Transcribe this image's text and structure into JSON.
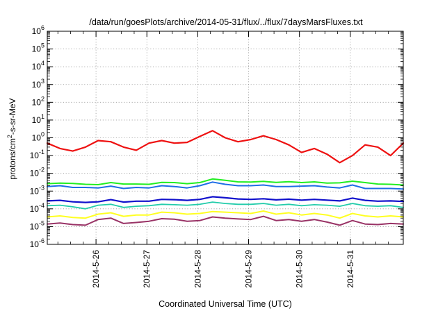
{
  "chart_data": {
    "type": "line",
    "title": "/data/run/goesPlots/archive/2014-05-31/flux/../flux/7daysMarsFluxes.txt",
    "xlabel": "Coordinated Universal Time (UTC)",
    "ylabel": {
      "pre": "protons/cm",
      "sup": "2",
      "post": "-s-sr-MeV"
    },
    "log_y": true,
    "grid": true,
    "x_range": [
      "2014-05-25T01:00",
      "2014-06-01T01:00"
    ],
    "ylim": [
      1e-06,
      1000000.0
    ],
    "x_ticks": [
      "2014-5-26",
      "2014-5-27",
      "2014-5-28",
      "2014-5-29",
      "2014-5-30",
      "2014-5-31"
    ],
    "y_ticks": [
      {
        "value": 1e-06,
        "base": "10",
        "exp": "-6"
      },
      {
        "value": 1e-05,
        "base": "10",
        "exp": "-5"
      },
      {
        "value": 0.0001,
        "base": "10",
        "exp": "-4"
      },
      {
        "value": 0.001,
        "base": "10",
        "exp": "-3"
      },
      {
        "value": 0.01,
        "base": "10",
        "exp": "-2"
      },
      {
        "value": 0.1,
        "base": "10",
        "exp": "-1"
      },
      {
        "value": 1.0,
        "base": "10",
        "exp": "0"
      },
      {
        "value": 10.0,
        "base": "10",
        "exp": "1"
      },
      {
        "value": 100.0,
        "base": "10",
        "exp": "2"
      },
      {
        "value": 1000.0,
        "base": "10",
        "exp": "3"
      },
      {
        "value": 10000.0,
        "base": "10",
        "exp": "4"
      },
      {
        "value": 100000.0,
        "base": "10",
        "exp": "5"
      },
      {
        "value": 1000000.0,
        "base": "10",
        "exp": "6"
      }
    ],
    "x": [
      "2014-05-25T01:00",
      "2014-05-25T07:00",
      "2014-05-25T13:00",
      "2014-05-25T19:00",
      "2014-05-26T01:00",
      "2014-05-26T07:00",
      "2014-05-26T13:00",
      "2014-05-26T19:00",
      "2014-05-27T01:00",
      "2014-05-27T07:00",
      "2014-05-27T13:00",
      "2014-05-27T19:00",
      "2014-05-28T01:00",
      "2014-05-28T07:00",
      "2014-05-28T13:00",
      "2014-05-28T19:00",
      "2014-05-29T01:00",
      "2014-05-29T07:00",
      "2014-05-29T13:00",
      "2014-05-29T19:00",
      "2014-05-30T01:00",
      "2014-05-30T07:00",
      "2014-05-30T13:00",
      "2014-05-30T19:00",
      "2014-05-31T01:00",
      "2014-05-31T07:00",
      "2014-05-31T13:00",
      "2014-05-31T19:00",
      "2014-06-01T01:00"
    ],
    "series": [
      {
        "color": "#ee1111",
        "width": 2.2,
        "values": [
          0.5,
          0.25,
          0.18,
          0.3,
          0.7,
          0.6,
          0.3,
          0.2,
          0.5,
          0.7,
          0.5,
          0.55,
          1.2,
          2.5,
          1.0,
          0.6,
          0.8,
          1.3,
          0.8,
          0.4,
          0.15,
          0.25,
          0.12,
          0.04,
          0.1,
          0.4,
          0.3,
          0.1,
          0.5
        ]
      },
      {
        "color": "#22ee22",
        "width": 2.0,
        "values": [
          0.0026,
          0.0028,
          0.0027,
          0.0024,
          0.0023,
          0.003,
          0.0025,
          0.0025,
          0.0024,
          0.0031,
          0.003,
          0.0026,
          0.003,
          0.0048,
          0.004,
          0.0033,
          0.0032,
          0.0035,
          0.0031,
          0.0034,
          0.003,
          0.0033,
          0.0028,
          0.0029,
          0.0036,
          0.003,
          0.0025,
          0.0024,
          0.0022
        ]
      },
      {
        "color": "#1e6ee6",
        "width": 2.0,
        "values": [
          0.0018,
          0.002,
          0.0016,
          0.0016,
          0.0015,
          0.0019,
          0.0014,
          0.0016,
          0.0015,
          0.002,
          0.0018,
          0.0015,
          0.002,
          0.0032,
          0.0024,
          0.002,
          0.002,
          0.0022,
          0.0018,
          0.0018,
          0.0019,
          0.002,
          0.0017,
          0.0015,
          0.0022,
          0.0014,
          0.0014,
          0.0014,
          0.0013
        ]
      },
      {
        "color": "#1111cc",
        "width": 2.2,
        "values": [
          0.00028,
          0.0003,
          0.00025,
          0.00023,
          0.00025,
          0.00033,
          0.00024,
          0.00027,
          0.00027,
          0.00034,
          0.00033,
          0.0003,
          0.00034,
          0.00048,
          0.00042,
          0.00036,
          0.00034,
          0.00037,
          0.00032,
          0.00035,
          0.00031,
          0.00034,
          0.00031,
          0.00028,
          0.0004,
          0.0003,
          0.00027,
          0.00028,
          0.00026
        ]
      },
      {
        "color": "#22ccaa",
        "width": 1.8,
        "values": [
          0.00015,
          0.00016,
          0.00013,
          0.0001,
          0.00016,
          0.00018,
          0.00012,
          0.00014,
          0.00015,
          0.00018,
          0.00017,
          0.00016,
          0.00018,
          0.00024,
          0.0002,
          0.00018,
          0.00018,
          0.0002,
          0.00016,
          0.00018,
          0.00015,
          0.00017,
          0.00016,
          0.00014,
          0.0002,
          0.00015,
          0.00014,
          0.00015,
          0.00012
        ]
      },
      {
        "color": "#ffff22",
        "width": 2.0,
        "values": [
          3.5e-05,
          4e-05,
          3.3e-05,
          3e-05,
          5e-05,
          6e-05,
          3.8e-05,
          4.5e-05,
          4.5e-05,
          6.5e-05,
          6e-05,
          5e-05,
          5.5e-05,
          7e-05,
          6.5e-05,
          6e-05,
          5.5e-05,
          7.5e-05,
          5e-05,
          6e-05,
          4.5e-05,
          5.5e-05,
          4.5e-05,
          3e-05,
          5.5e-05,
          4e-05,
          3.5e-05,
          4e-05,
          3.5e-05
        ]
      },
      {
        "color": "#993366",
        "width": 2.0,
        "values": [
          1.4e-05,
          1.6e-05,
          1.3e-05,
          1.2e-05,
          2.5e-05,
          3e-05,
          1.5e-05,
          1.7e-05,
          2e-05,
          2.8e-05,
          2.6e-05,
          2e-05,
          2.2e-05,
          3.5e-05,
          3e-05,
          2.7e-05,
          2.5e-05,
          3.8e-05,
          2.2e-05,
          2.5e-05,
          2e-05,
          2.5e-05,
          1.8e-05,
          1.2e-05,
          2.2e-05,
          1.4e-05,
          1.3e-05,
          1.5e-05,
          1.4e-05
        ]
      }
    ]
  }
}
